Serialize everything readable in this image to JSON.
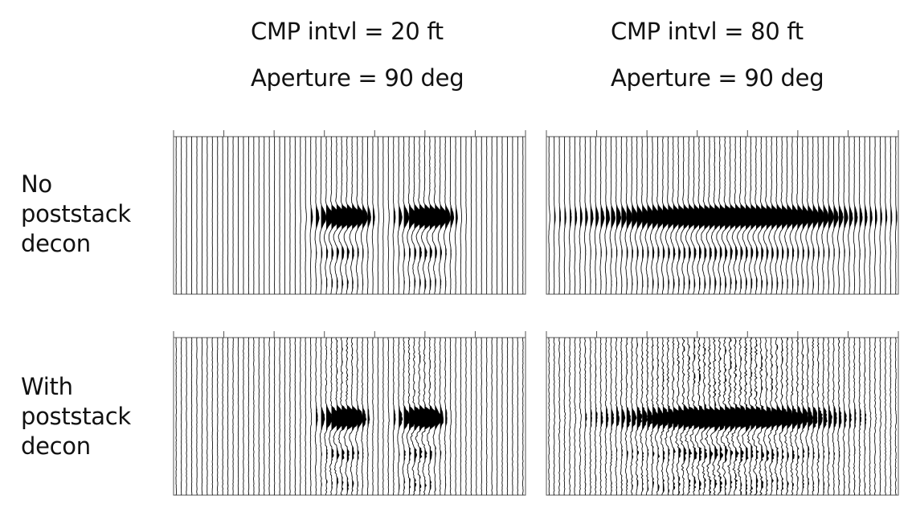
{
  "columns": [
    {
      "id": "cmp20",
      "cmp_interval": "CMP intvl = 20 ft",
      "aperture": "Aperture = 90 deg"
    },
    {
      "id": "cmp80",
      "cmp_interval": "CMP intvl = 80 ft",
      "aperture": "Aperture = 90 deg"
    }
  ],
  "rows": [
    {
      "id": "no-decon",
      "label_lines": [
        "No",
        "poststack",
        "decon"
      ]
    },
    {
      "id": "with-decon",
      "label_lines": [
        "With",
        "poststack",
        "decon"
      ]
    }
  ],
  "panels": [
    {
      "row": "no-decon",
      "col": "cmp20",
      "traces": 68,
      "events": [
        {
          "center_trace": 32,
          "width_traces": 5.5
        },
        {
          "center_trace": 48,
          "width_traces": 5.5
        }
      ],
      "noise": "low"
    },
    {
      "row": "no-decon",
      "col": "cmp80",
      "traces": 68,
      "events": [
        {
          "center_trace": 34,
          "width_traces": 27
        }
      ],
      "noise": "low"
    },
    {
      "row": "with-decon",
      "col": "cmp20",
      "traces": 68,
      "events": [
        {
          "center_trace": 32,
          "width_traces": 4.5
        },
        {
          "center_trace": 47,
          "width_traces": 4.5
        }
      ],
      "noise": "medium"
    },
    {
      "row": "with-decon",
      "col": "cmp80",
      "traces": 68,
      "events": [
        {
          "center_trace": 34,
          "width_traces": 22
        }
      ],
      "noise": "high"
    }
  ],
  "colors": {
    "background": "#ffffff",
    "trace": "#111111",
    "fill": "#000000",
    "frame": "#555555"
  }
}
